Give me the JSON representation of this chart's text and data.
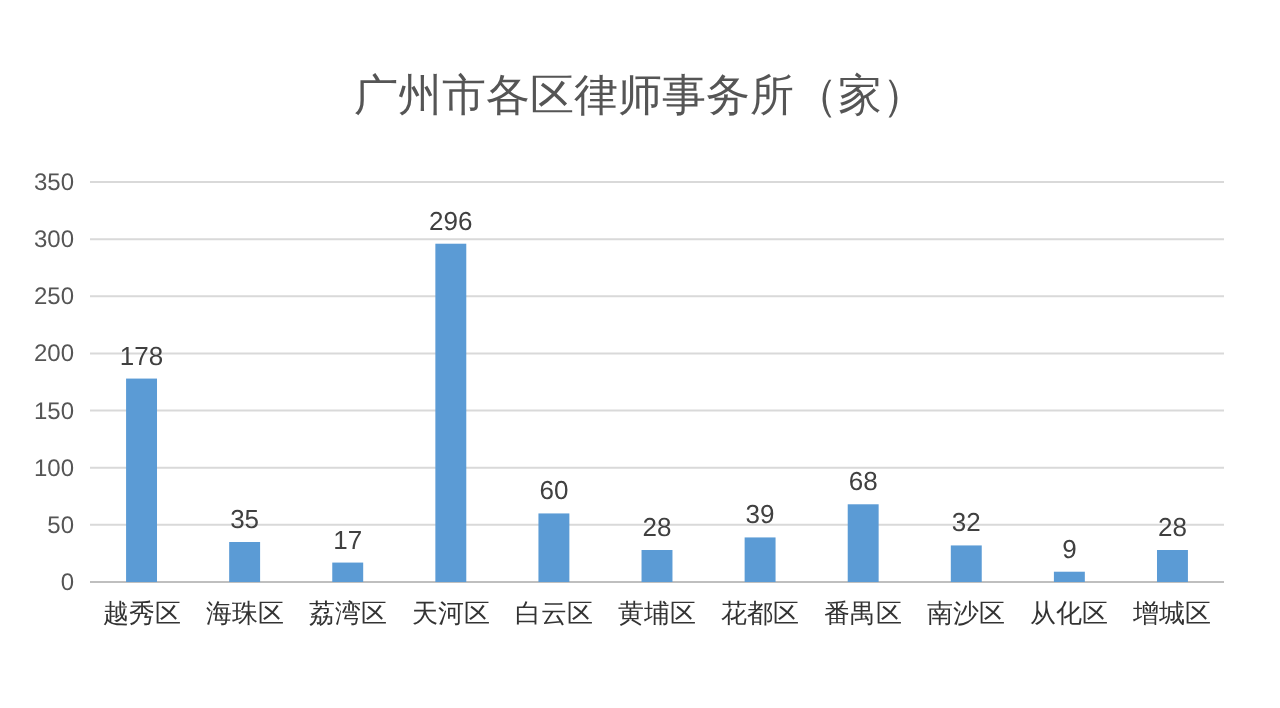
{
  "chart_data": {
    "type": "bar",
    "title": "广州市各区律师事务所（家）",
    "categories": [
      "越秀区",
      "海珠区",
      "荔湾区",
      "天河区",
      "白云区",
      "黄埔区",
      "花都区",
      "番禺区",
      "南沙区",
      "从化区",
      "增城区"
    ],
    "values": [
      178,
      35,
      17,
      296,
      60,
      28,
      39,
      68,
      32,
      9,
      28
    ],
    "color": "#5b9bd5",
    "ylim": [
      0,
      350
    ],
    "yticks": [
      0,
      50,
      100,
      150,
      200,
      250,
      300,
      350
    ],
    "grid": "y",
    "data_labels": true
  }
}
